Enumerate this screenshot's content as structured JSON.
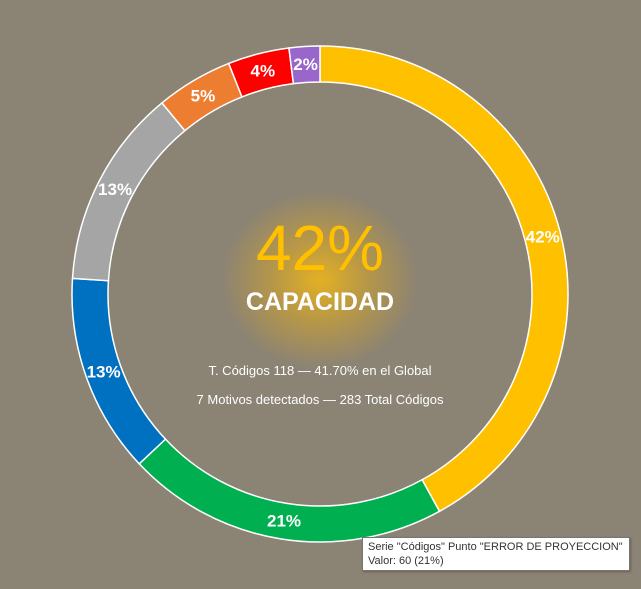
{
  "chart_data": {
    "type": "pie",
    "donut": true,
    "slices": [
      {
        "label": "42%",
        "value": 42,
        "color": "#FFC000"
      },
      {
        "label": "21%",
        "value": 21,
        "color": "#00B050"
      },
      {
        "label": "13%",
        "value": 13,
        "color": "#0070C0"
      },
      {
        "label": "13%",
        "value": 13,
        "color": "#A5A5A5"
      },
      {
        "label": "5%",
        "value": 5,
        "color": "#ED7D31"
      },
      {
        "label": "4%",
        "value": 4,
        "color": "#FF0000"
      },
      {
        "label": "2%",
        "value": 2,
        "color": "#9966CC"
      }
    ],
    "center": {
      "percent": "42%",
      "title": "CAPACIDAD",
      "line1": "T. Códigos 118 — 41.70% en el Global",
      "line2": "7 Motivos detectados — 283 Total Códigos"
    },
    "tooltip": {
      "line1": "Serie \"Códigos\" Punto \"ERROR DE PROYECCION\"",
      "line2": "Valor: 60 (21%)"
    }
  }
}
